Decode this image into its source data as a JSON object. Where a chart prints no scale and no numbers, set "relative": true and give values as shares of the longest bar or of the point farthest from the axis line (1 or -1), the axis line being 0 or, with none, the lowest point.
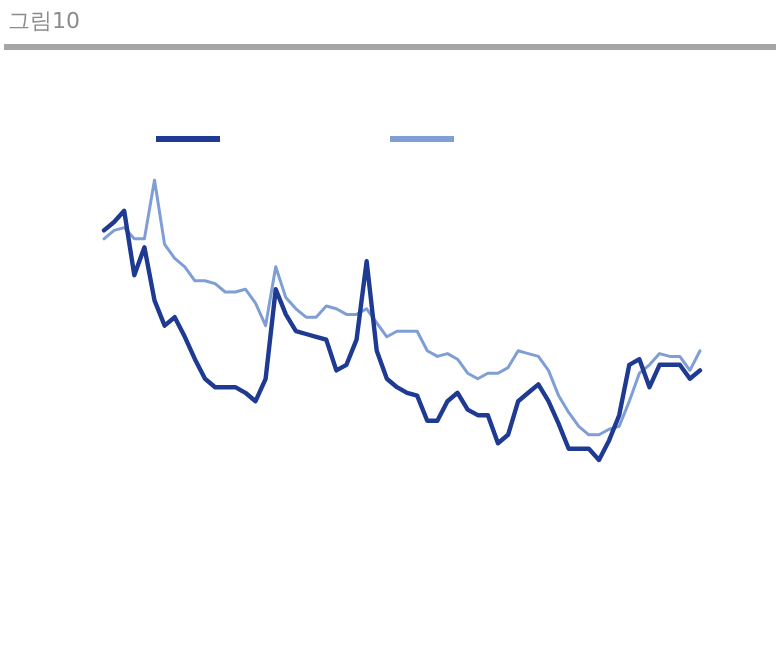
{
  "chart_data": {
    "type": "line",
    "title": "그림10",
    "relative": true,
    "marker": "none",
    "line_style": "solid",
    "categories": [
      null,
      null,
      null,
      null,
      null,
      null,
      null,
      null,
      null,
      null,
      null,
      null,
      null,
      null,
      null,
      null,
      null,
      null,
      null,
      null,
      null,
      null,
      null,
      null,
      null,
      null,
      null,
      null,
      null,
      null,
      null,
      null,
      null,
      null,
      null,
      null,
      null,
      null,
      null,
      null,
      null,
      null,
      null,
      null,
      null,
      null,
      null,
      null,
      null,
      null,
      null,
      null,
      null,
      null,
      null,
      null,
      null,
      null,
      null,
      null
    ],
    "series": [
      {
        "color": "#1f3a93",
        "values": [
          0.82,
          0.85,
          0.89,
          0.66,
          0.76,
          0.57,
          0.48,
          0.51,
          0.44,
          0.36,
          0.29,
          0.26,
          0.26,
          0.26,
          0.24,
          0.21,
          0.29,
          0.61,
          0.52,
          0.46,
          0.45,
          0.44,
          0.43,
          0.32,
          0.34,
          0.43,
          0.71,
          0.39,
          0.29,
          0.26,
          0.24,
          0.23,
          0.14,
          0.14,
          0.21,
          0.24,
          0.18,
          0.16,
          0.16,
          0.06,
          0.09,
          0.21,
          0.24,
          0.27,
          0.21,
          0.13,
          0.04,
          0.04,
          0.04,
          0,
          0.07,
          0.16,
          0.34,
          0.36,
          0.26,
          0.34,
          0.34,
          0.34,
          0.29,
          0.32
        ]
      },
      {
        "color": "#7f9ed6",
        "values": [
          0.79,
          0.82,
          0.83,
          0.79,
          0.79,
          1,
          0.77,
          0.72,
          0.69,
          0.64,
          0.64,
          0.63,
          0.6,
          0.6,
          0.61,
          0.56,
          0.48,
          0.69,
          0.58,
          0.54,
          0.51,
          0.51,
          0.55,
          0.54,
          0.52,
          0.52,
          0.54,
          0.49,
          0.44,
          0.46,
          0.46,
          0.46,
          0.39,
          0.37,
          0.38,
          0.36,
          0.31,
          0.29,
          0.31,
          0.31,
          0.33,
          0.39,
          0.38,
          0.37,
          0.32,
          0.23,
          0.17,
          0.12,
          0.09,
          0.09,
          0.11,
          0.12,
          0.21,
          0.31,
          0.34,
          0.38,
          0.37,
          0.37,
          0.32,
          0.39
        ]
      }
    ]
  }
}
